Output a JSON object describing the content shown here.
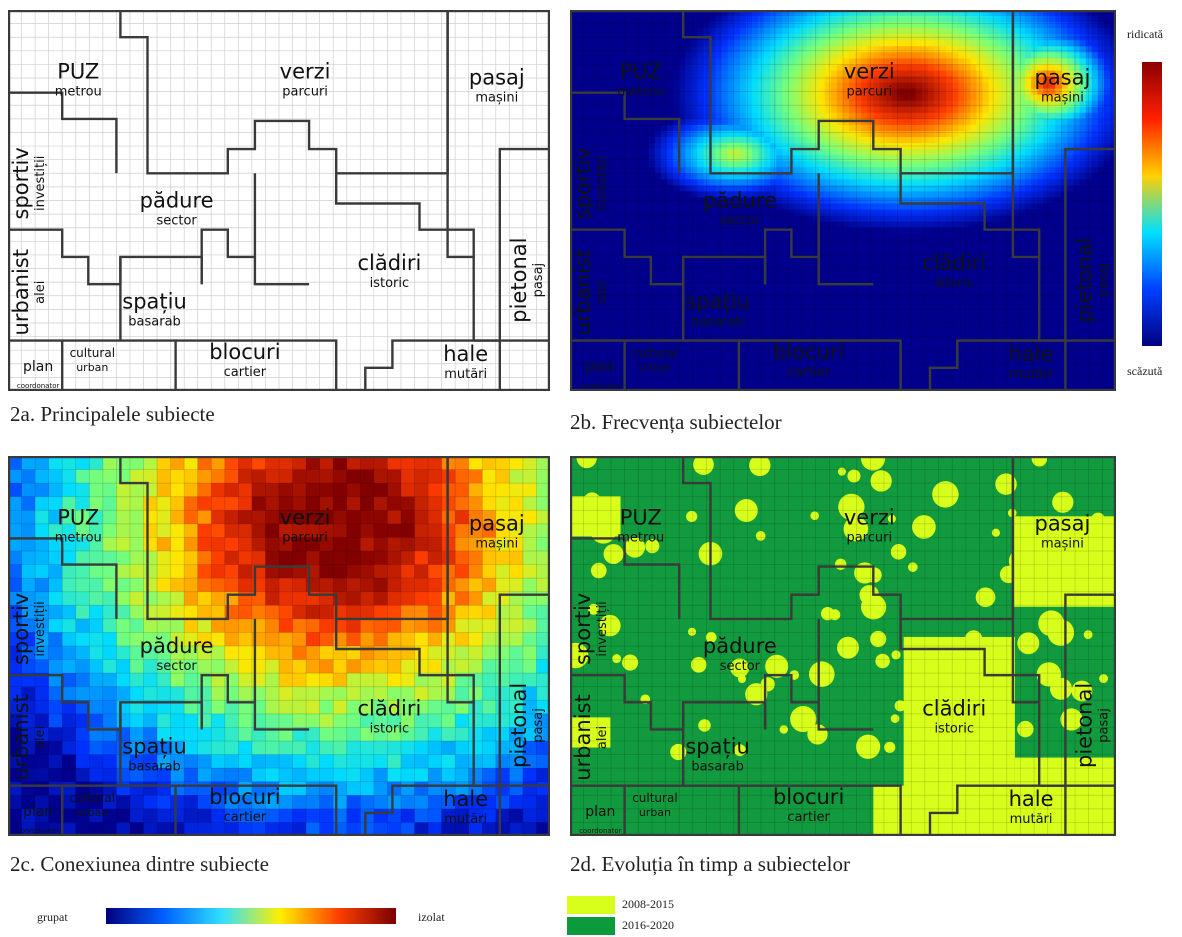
{
  "panels": [
    {
      "id": "a",
      "caption": "2a. Principalele subiecte",
      "style": "white"
    },
    {
      "id": "b",
      "caption": "2b. Frecvența subiectelor",
      "style": "heat"
    },
    {
      "id": "c",
      "caption": "2c. Conexiunea dintre subiecte",
      "style": "connect"
    },
    {
      "id": "d",
      "caption": "2d. Evoluția în timp a subiectelor",
      "style": "green"
    }
  ],
  "regions": [
    {
      "main": "PUZ",
      "sub": "metrou"
    },
    {
      "main": "verzi",
      "sub": "parcuri"
    },
    {
      "main": "pasaj",
      "sub": "mașini"
    },
    {
      "main": "sportiv",
      "sub": "investiții",
      "vertical": true
    },
    {
      "main": "pădure",
      "sub": "sector"
    },
    {
      "main": "clădiri",
      "sub": "istoric"
    },
    {
      "main": "pietonal",
      "sub": "pasaj",
      "vertical": true
    },
    {
      "main": "urbanist",
      "sub": "alei",
      "vertical": true
    },
    {
      "main": "spațiu",
      "sub": "basarab"
    },
    {
      "main": "plan",
      "sub": "coordonator"
    },
    {
      "main": "cultural",
      "sub": "urban",
      "small": true
    },
    {
      "main": "blocuri",
      "sub": "cartier"
    },
    {
      "main": "hale",
      "sub": "mutări"
    }
  ],
  "frequency_scale": {
    "high": "ridicată",
    "low": "scăzută",
    "colors": [
      "#8b0000",
      "#ff2000",
      "#ffd000",
      "#00e0ff",
      "#0040ff",
      "#00007f"
    ]
  },
  "connection_scale": {
    "left": "grupat",
    "right": "izolat",
    "colors": [
      "#00007f",
      "#0060ff",
      "#30e0ff",
      "#fff000",
      "#ff4000",
      "#7a0000"
    ]
  },
  "evolution_legend": [
    {
      "label": "2008-2015",
      "color": "#d8ff1c"
    },
    {
      "label": "2016-2020",
      "color": "#0c9a3c"
    }
  ]
}
